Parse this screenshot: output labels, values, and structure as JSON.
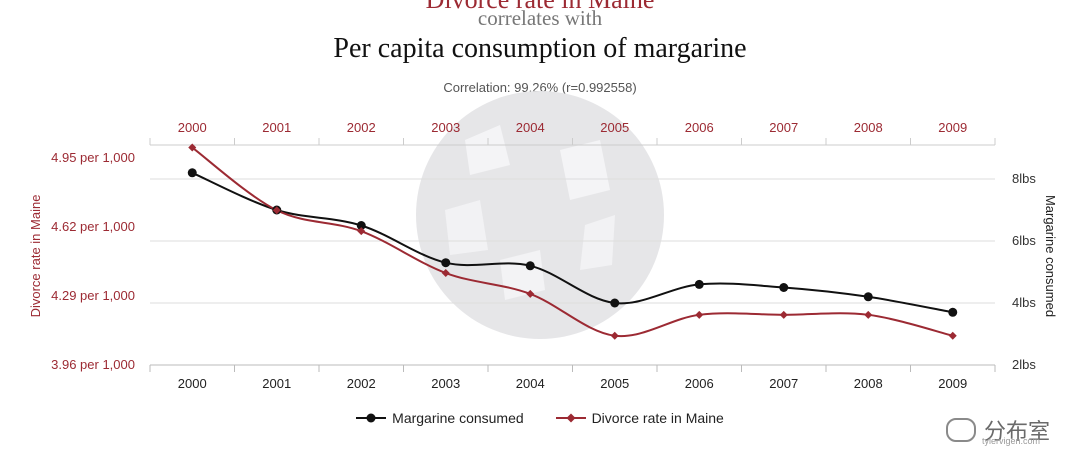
{
  "header": {
    "title_top": "Divorce rate in Maine",
    "subtitle": "correlates with",
    "title_main": "Per capita consumption of margarine",
    "correlation": "Correlation: 99.26% (r=0.992558)"
  },
  "legend": {
    "margarine": "Margarine consumed",
    "divorce": "Divorce rate in Maine"
  },
  "watermark": {
    "brand": "分布室",
    "site": "tylervigen.com"
  },
  "colors": {
    "margarine": "#111111",
    "divorce": "#9c2a33",
    "axis_left_text": "#9c2a33",
    "axis_right_text": "#333333",
    "grid": "#dddddd"
  },
  "chart_data": {
    "type": "line",
    "x": [
      "2000",
      "2001",
      "2002",
      "2003",
      "2004",
      "2005",
      "2006",
      "2007",
      "2008",
      "2009"
    ],
    "series": [
      {
        "name": "Margarine consumed",
        "axis": "right",
        "unit": "lbs",
        "values": [
          8.2,
          7.0,
          6.5,
          5.3,
          5.2,
          4.0,
          4.6,
          4.5,
          4.2,
          3.7
        ]
      },
      {
        "name": "Divorce rate in Maine",
        "axis": "left",
        "unit": "per 1,000",
        "values": [
          5.0,
          4.7,
          4.6,
          4.4,
          4.3,
          4.1,
          4.2,
          4.2,
          4.2,
          4.1
        ]
      }
    ],
    "y_left": {
      "label": "Divorce rate in Maine",
      "ticks": [
        "4.95 per 1,000",
        "4.62 per 1,000",
        "4.29 per 1,000",
        "3.96 per 1,000"
      ],
      "range": [
        3.96,
        4.95
      ]
    },
    "y_right": {
      "label": "Margarine consumed",
      "ticks": [
        "8lbs",
        "6lbs",
        "4lbs",
        "2lbs"
      ],
      "range": [
        2,
        8
      ]
    }
  }
}
